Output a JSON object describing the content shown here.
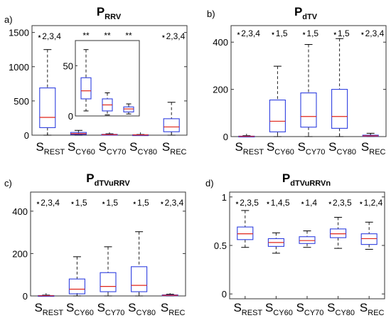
{
  "chart_data": [
    {
      "type": "box",
      "panel": "a)",
      "title": {
        "main": "P",
        "sub": "RRV"
      },
      "xlabel": "",
      "ylabel": "",
      "ylim": [
        0,
        1600
      ],
      "yticks": [
        "0",
        "500",
        "1000",
        "1500"
      ],
      "ytick_values": [
        0,
        500,
        1000,
        1500
      ],
      "categories": [
        {
          "main": "S",
          "sub": "REST"
        },
        {
          "main": "S",
          "sub": "CY60"
        },
        {
          "main": "S",
          "sub": "CY70"
        },
        {
          "main": "S",
          "sub": "CY80"
        },
        {
          "main": "S",
          "sub": "REC"
        }
      ],
      "annotations": [
        "⋆2,3,4",
        "",
        "",
        "",
        "⋆2,3,4"
      ],
      "boxes": [
        {
          "min": 0,
          "q1": 110,
          "median": 260,
          "q3": 690,
          "max": 1250
        },
        {
          "min": 0,
          "q1": 10,
          "median": 22,
          "q3": 40,
          "max": 70
        },
        {
          "min": 0,
          "q1": 4,
          "median": 8,
          "q3": 12,
          "max": 20
        },
        {
          "min": 0,
          "q1": 2,
          "median": 4,
          "q3": 6,
          "max": 10
        },
        {
          "min": 0,
          "q1": 50,
          "median": 120,
          "q3": 240,
          "max": 480
        }
      ],
      "inset": {
        "ylim": [
          0,
          75
        ],
        "yticks": [
          "0",
          "50"
        ],
        "ytick_values": [
          0,
          50
        ],
        "annotations": [
          "**",
          "**",
          "**"
        ],
        "boxes": [
          {
            "min": 5,
            "q1": 17,
            "median": 25,
            "q3": 38,
            "max": 66
          },
          {
            "min": 1,
            "q1": 5,
            "median": 11,
            "q3": 17,
            "max": 23
          },
          {
            "min": 2,
            "q1": 4,
            "median": 7,
            "q3": 9,
            "max": 12
          }
        ]
      }
    },
    {
      "type": "box",
      "panel": "b)",
      "title": {
        "main": "P",
        "sub": "dTV"
      },
      "xlabel": "",
      "ylabel": "",
      "ylim": [
        0,
        470
      ],
      "yticks": [
        "0",
        "200",
        "400"
      ],
      "ytick_values": [
        0,
        200,
        400
      ],
      "categories": [
        {
          "main": "S",
          "sub": "REST"
        },
        {
          "main": "S",
          "sub": "CY60"
        },
        {
          "main": "S",
          "sub": "CY70"
        },
        {
          "main": "S",
          "sub": "CY80"
        },
        {
          "main": "S",
          "sub": "REC"
        }
      ],
      "annotations": [
        "⋆2,3,4",
        "⋆1,5",
        "⋆1,5",
        "⋆1,5",
        "⋆2,3,4"
      ],
      "boxes": [
        {
          "min": 0,
          "q1": 0,
          "median": 1,
          "q3": 2,
          "max": 4
        },
        {
          "min": 0,
          "q1": 20,
          "median": 65,
          "q3": 155,
          "max": 298
        },
        {
          "min": 0,
          "q1": 40,
          "median": 85,
          "q3": 185,
          "max": 390
        },
        {
          "min": 0,
          "q1": 35,
          "median": 85,
          "q3": 200,
          "max": 415
        },
        {
          "min": 0,
          "q1": 1,
          "median": 3,
          "q3": 6,
          "max": 14
        }
      ]
    },
    {
      "type": "box",
      "panel": "c)",
      "title": {
        "main": "P",
        "sub": "dTVuRRV"
      },
      "xlabel": "",
      "ylabel": "",
      "ylim": [
        0,
        490
      ],
      "yticks": [
        "0",
        "200",
        "400"
      ],
      "ytick_values": [
        0,
        200,
        400
      ],
      "categories": [
        {
          "main": "S",
          "sub": "REST"
        },
        {
          "main": "S",
          "sub": "CY60"
        },
        {
          "main": "S",
          "sub": "CY70"
        },
        {
          "main": "S",
          "sub": "CY80"
        },
        {
          "main": "S",
          "sub": "REC"
        }
      ],
      "annotations": [
        "⋆2,3,4",
        "⋆1,5",
        "⋆1,5",
        "⋆1,5",
        "⋆2,3,4"
      ],
      "boxes": [
        {
          "min": 0,
          "q1": 0,
          "median": 1,
          "q3": 2,
          "max": 4
        },
        {
          "min": 0,
          "q1": 10,
          "median": 32,
          "q3": 80,
          "max": 185
        },
        {
          "min": 0,
          "q1": 20,
          "median": 45,
          "q3": 110,
          "max": 232
        },
        {
          "min": 0,
          "q1": 20,
          "median": 50,
          "q3": 138,
          "max": 303
        },
        {
          "min": 0,
          "q1": 1,
          "median": 3,
          "q3": 5,
          "max": 8
        }
      ]
    },
    {
      "type": "box",
      "panel": "d)",
      "title": {
        "main": "P",
        "sub": "dTVuRRVn"
      },
      "xlabel": "",
      "ylabel": "",
      "ylim": [
        -0.05,
        1.05
      ],
      "yticks": [
        "0",
        "0.5",
        "1"
      ],
      "ytick_values": [
        0,
        0.5,
        1
      ],
      "categories": [
        {
          "main": "S",
          "sub": "REST"
        },
        {
          "main": "S",
          "sub": "CY60"
        },
        {
          "main": "S",
          "sub": "CY70"
        },
        {
          "main": "S",
          "sub": "CY80"
        },
        {
          "main": "S",
          "sub": "REC"
        }
      ],
      "annotations": [
        "⋆2,3,5",
        "⋆1,4,5",
        "⋆1,4",
        "⋆2,3,5",
        "⋆1,2,4"
      ],
      "boxes": [
        {
          "min": 0.48,
          "q1": 0.56,
          "median": 0.62,
          "q3": 0.69,
          "max": 0.86
        },
        {
          "min": 0.42,
          "q1": 0.49,
          "median": 0.53,
          "q3": 0.57,
          "max": 0.63
        },
        {
          "min": 0.48,
          "q1": 0.52,
          "median": 0.55,
          "q3": 0.59,
          "max": 0.65
        },
        {
          "min": 0.47,
          "q1": 0.58,
          "median": 0.62,
          "q3": 0.67,
          "max": 0.79
        },
        {
          "min": 0.46,
          "q1": 0.51,
          "median": 0.57,
          "q3": 0.62,
          "max": 0.74
        }
      ]
    }
  ]
}
